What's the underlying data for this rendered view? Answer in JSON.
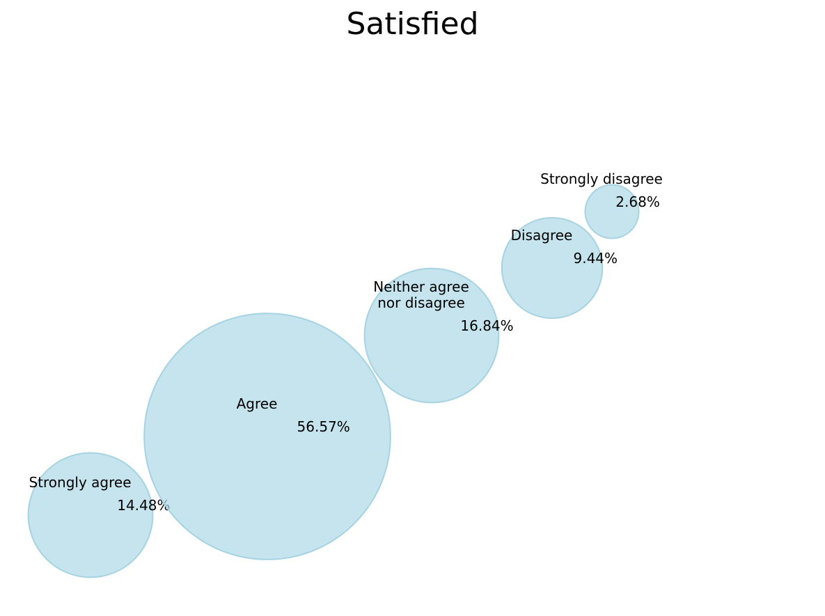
{
  "chart_data": {
    "type": "bubble",
    "title": "Satisfied",
    "bubble_color": "#add8e6",
    "bubble_opacity": 0.7,
    "bubble_edge_color": "#a6d3e2",
    "points": [
      {
        "label": "Strongly agree",
        "label_lines": [
          "Strongly agree"
        ],
        "value": 14.48,
        "value_text": "14.48%"
      },
      {
        "label": "Agree",
        "label_lines": [
          "Agree"
        ],
        "value": 56.57,
        "value_text": "56.57%"
      },
      {
        "label": "Neither agree nor disagree",
        "label_lines": [
          "Neither agree",
          "nor disagree"
        ],
        "value": 16.84,
        "value_text": "16.84%"
      },
      {
        "label": "Disagree",
        "label_lines": [
          "Disagree"
        ],
        "value": 9.44,
        "value_text": "9.44%"
      },
      {
        "label": "Strongly disagree",
        "label_lines": [
          "Strongly disagree"
        ],
        "value": 2.68,
        "value_text": "2.68%"
      }
    ]
  }
}
